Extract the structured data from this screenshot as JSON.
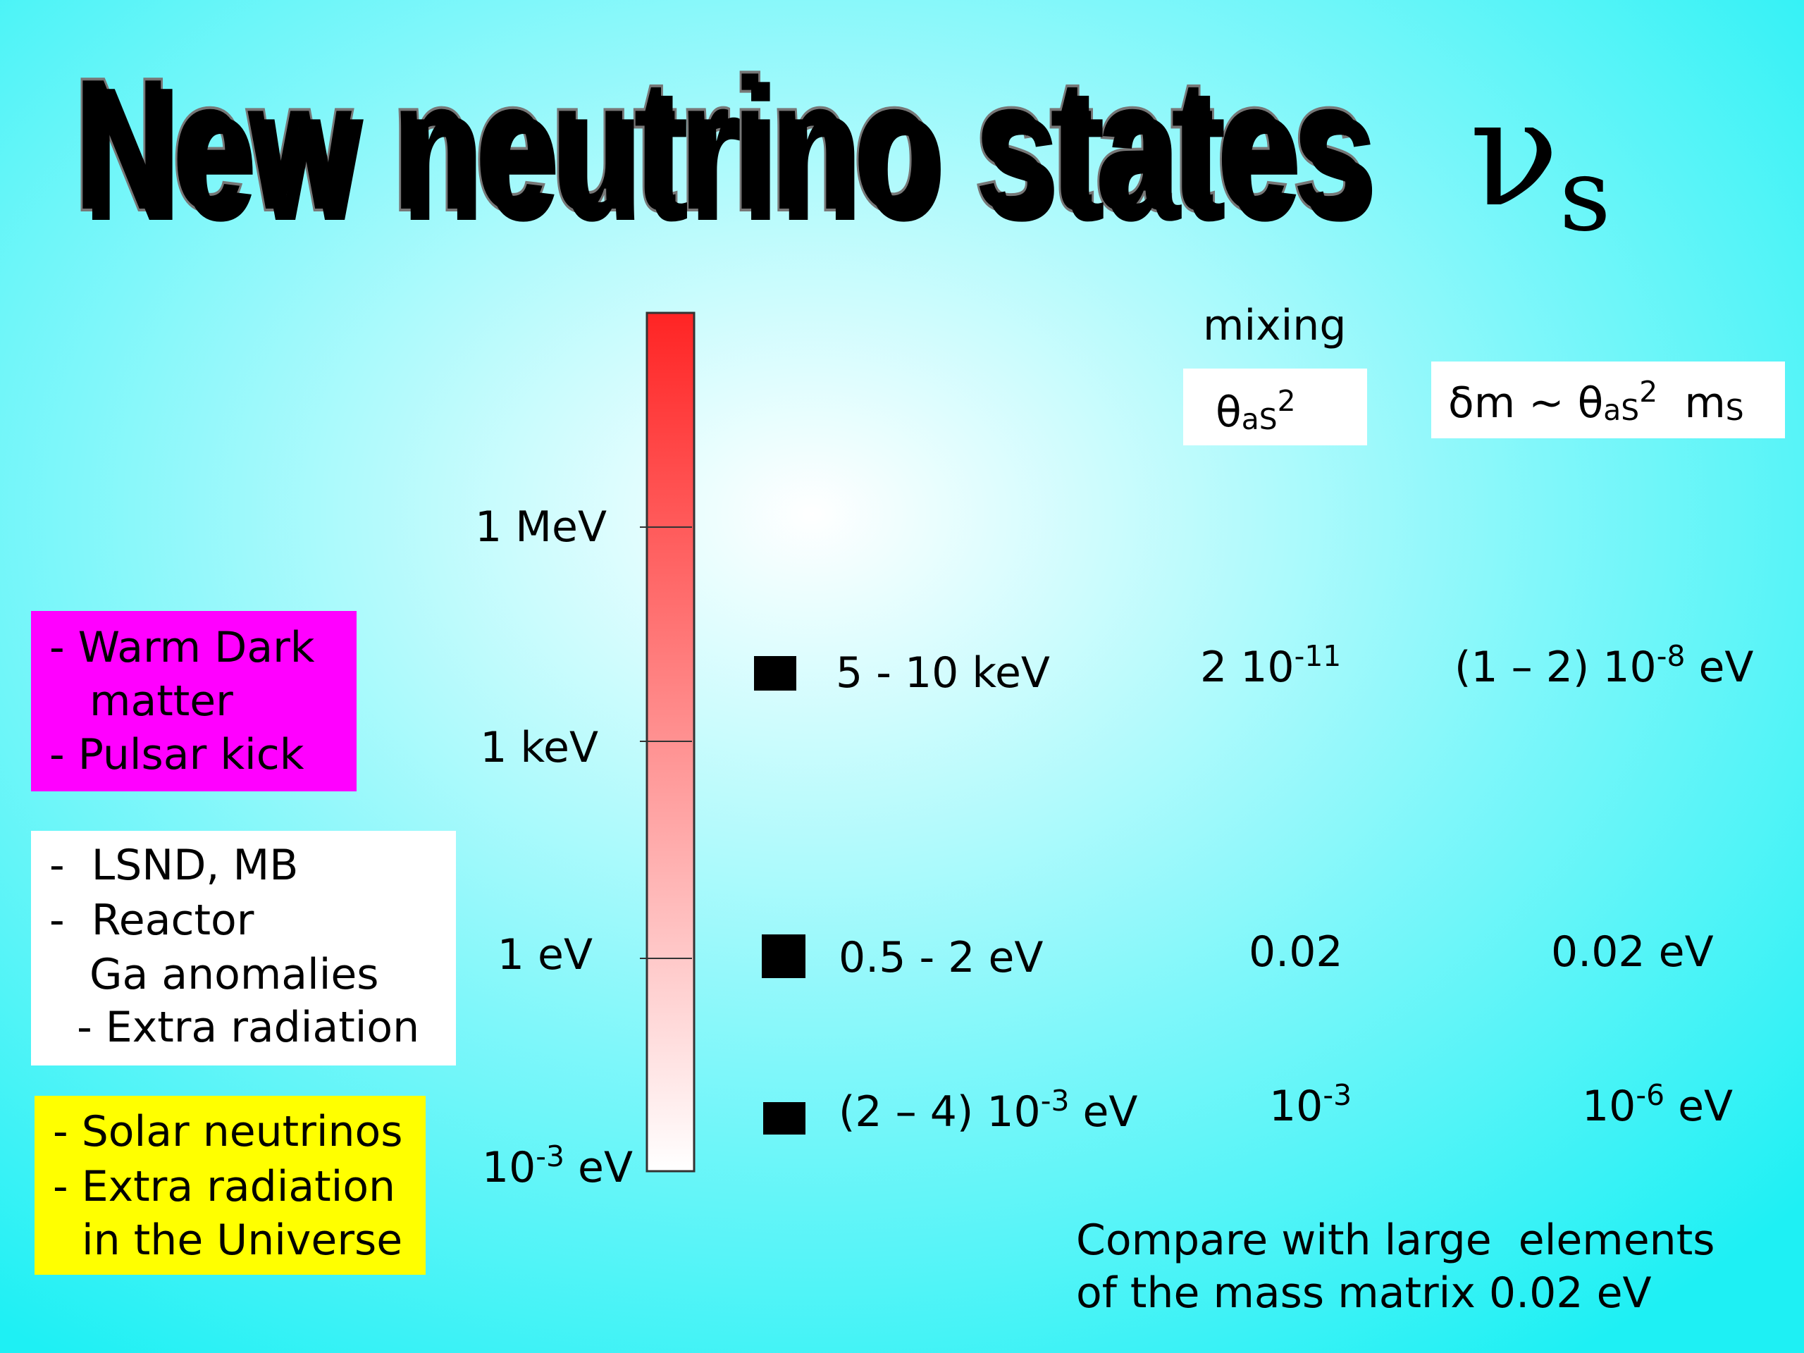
{
  "title": "New neutrino states",
  "symbol": [
    {
      "text": "ν"
    },
    {
      "sub": "s"
    }
  ],
  "scale_labels": [
    [
      "1 MeV"
    ],
    [
      "1 keV"
    ],
    [
      "1 eV"
    ],
    [
      {
        "text": "10"
      },
      {
        "sup": "-3"
      },
      {
        "text": " eV"
      }
    ]
  ],
  "boxes": [
    {
      "lines": [
        "- Warm Dark",
        "matter",
        "- Pulsar kick"
      ]
    },
    {
      "lines": [
        "-  LSND, MB",
        "-  Reactor",
        "Ga anomalies",
        " - Extra radiation"
      ]
    },
    {
      "lines": [
        "- Solar neutrinos",
        "- Extra radiation",
        "in the Universe"
      ]
    }
  ],
  "columns": {
    "mixing_header": "mixing",
    "mixing_symbol": [
      {
        "text": "θ"
      },
      {
        "sub": "aS"
      },
      {
        "sup": "2"
      }
    ],
    "mass_symbol": [
      {
        "text": "δm ~ θ"
      },
      {
        "sub": "aS"
      },
      {
        "sup": "2"
      },
      {
        "text": "  m"
      },
      {
        "sub": "S"
      }
    ]
  },
  "rows": [
    {
      "mass": [
        {
          "text": "5 - 10 keV"
        }
      ],
      "mixing": [
        {
          "text": "2 10"
        },
        {
          "sup": "-11"
        }
      ],
      "splitting": [
        {
          "text": "(1 – 2) 10"
        },
        {
          "sup": "-8"
        },
        {
          "text": " eV"
        }
      ]
    },
    {
      "mass": [
        {
          "text": "0.5 - 2 eV"
        }
      ],
      "mixing": [
        {
          "text": "0.02"
        }
      ],
      "splitting": [
        {
          "text": "0.02 eV"
        }
      ]
    },
    {
      "mass": [
        {
          "text": "(2 – 4) 10"
        },
        {
          "sup": "-3"
        },
        {
          "text": " eV"
        }
      ],
      "mixing": [
        {
          "text": "10"
        },
        {
          "sup": "-3"
        }
      ],
      "splitting": [
        {
          "text": "10"
        },
        {
          "sup": "-6"
        },
        {
          "text": " eV"
        }
      ]
    }
  ],
  "note": [
    "Compare with large  elements",
    "of the mass matrix 0.02 eV"
  ]
}
